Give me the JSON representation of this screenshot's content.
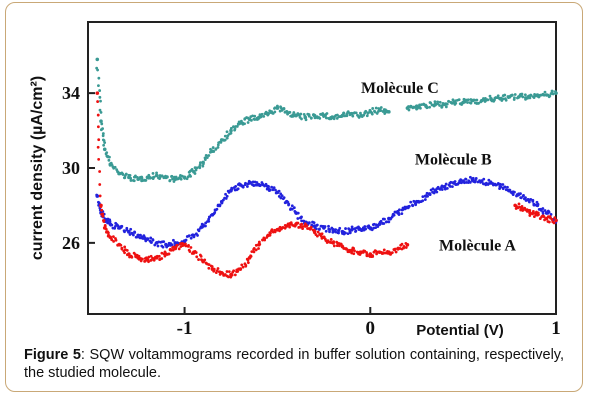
{
  "chart_data": {
    "type": "scatter",
    "ylabel": "current density (µA/cm²)",
    "xlabel": "Potential (V)",
    "xlim": [
      -1.52,
      1.0
    ],
    "ylim": [
      22.2,
      37.8
    ],
    "yticks": [
      26,
      30,
      34
    ],
    "xticks": [
      -1,
      0,
      1
    ],
    "ytick_labels": [
      "26",
      "30",
      "34"
    ],
    "xtick_labels": [
      "-1",
      "0",
      "1"
    ],
    "grid": false,
    "legend": "none",
    "series": [
      {
        "name": "Molècule C",
        "color": "#3a9a94",
        "label_x": -0.05,
        "label_y": 34.0,
        "x": [
          -1.47,
          -1.45,
          -1.43,
          -1.4,
          -1.35,
          -1.3,
          -1.25,
          -1.2,
          -1.15,
          -1.1,
          -1.05,
          -1.0,
          -0.95,
          -0.9,
          -0.85,
          -0.8,
          -0.75,
          -0.7,
          -0.65,
          -0.6,
          -0.55,
          -0.5,
          -0.45,
          -0.4,
          -0.35,
          -0.3,
          -0.25,
          -0.2,
          -0.15,
          -0.1,
          -0.05,
          0.0,
          0.05,
          0.1,
          0.2,
          0.25,
          0.3,
          0.35,
          0.4,
          0.45,
          0.5,
          0.55,
          0.6,
          0.65,
          0.7,
          0.75,
          0.8,
          0.85,
          0.9,
          0.95,
          1.0
        ],
        "y": [
          35.8,
          32.5,
          31.0,
          30.2,
          29.7,
          29.5,
          29.4,
          29.5,
          29.6,
          29.5,
          29.4,
          29.5,
          29.8,
          30.3,
          30.9,
          31.5,
          32.0,
          32.4,
          32.6,
          32.7,
          32.9,
          33.2,
          33.0,
          32.8,
          32.7,
          32.8,
          32.8,
          32.7,
          32.8,
          32.9,
          32.8,
          33.0,
          33.1,
          33.0,
          33.2,
          33.3,
          33.3,
          33.4,
          33.4,
          33.5,
          33.5,
          33.6,
          33.6,
          33.7,
          33.7,
          33.8,
          33.8,
          33.8,
          33.9,
          33.9,
          34.0
        ]
      },
      {
        "name": "Molècule B",
        "color": "#2222dd",
        "label_x": 0.24,
        "label_y": 30.2,
        "x": [
          -1.47,
          -1.45,
          -1.42,
          -1.4,
          -1.35,
          -1.3,
          -1.25,
          -1.2,
          -1.15,
          -1.1,
          -1.05,
          -1.0,
          -0.95,
          -0.9,
          -0.85,
          -0.8,
          -0.75,
          -0.7,
          -0.65,
          -0.6,
          -0.55,
          -0.5,
          -0.45,
          -0.4,
          -0.35,
          -0.3,
          -0.25,
          -0.2,
          -0.15,
          -0.1,
          -0.05,
          0.0,
          0.05,
          0.1,
          0.15,
          0.2,
          0.25,
          0.3,
          0.35,
          0.4,
          0.45,
          0.5,
          0.55,
          0.6,
          0.65,
          0.7,
          0.75,
          0.8,
          0.85,
          0.9,
          0.95,
          1.0
        ],
        "y": [
          28.5,
          27.6,
          27.2,
          27.0,
          26.8,
          26.6,
          26.4,
          26.2,
          26.0,
          25.9,
          26.0,
          26.1,
          26.4,
          26.9,
          27.5,
          28.2,
          28.8,
          29.1,
          29.2,
          29.1,
          29.0,
          28.7,
          28.2,
          27.6,
          27.1,
          26.9,
          26.8,
          26.7,
          26.6,
          26.7,
          26.7,
          26.8,
          27.0,
          27.3,
          27.6,
          27.9,
          28.2,
          28.5,
          28.8,
          29.0,
          29.2,
          29.3,
          29.4,
          29.3,
          29.2,
          29.0,
          28.8,
          28.6,
          28.3,
          28.0,
          27.6,
          27.2
        ]
      },
      {
        "name": "Molècule A",
        "color": "#ee1111",
        "label_x": 0.37,
        "label_y": 25.6,
        "x": [
          -1.47,
          -1.45,
          -1.43,
          -1.4,
          -1.35,
          -1.3,
          -1.25,
          -1.2,
          -1.15,
          -1.1,
          -1.05,
          -1.0,
          -0.95,
          -0.9,
          -0.85,
          -0.8,
          -0.75,
          -0.7,
          -0.65,
          -0.6,
          -0.55,
          -0.5,
          -0.45,
          -0.4,
          -0.35,
          -0.3,
          -0.25,
          -0.2,
          -0.15,
          -0.1,
          -0.05,
          0.0,
          0.05,
          0.1,
          0.15,
          0.2,
          0.78,
          0.82,
          0.86,
          0.9,
          0.95,
          1.0
        ],
        "y": [
          34.0,
          28.0,
          26.8,
          26.3,
          25.9,
          25.4,
          25.2,
          25.1,
          25.2,
          25.4,
          25.7,
          25.9,
          25.5,
          25.0,
          24.6,
          24.4,
          24.3,
          24.6,
          25.2,
          25.9,
          26.4,
          26.7,
          26.9,
          27.0,
          26.9,
          26.6,
          26.3,
          26.0,
          25.8,
          25.6,
          25.5,
          25.4,
          25.5,
          25.5,
          25.7,
          25.9,
          28.0,
          27.8,
          27.6,
          27.5,
          27.3,
          27.2
        ]
      }
    ]
  },
  "caption": {
    "label": "Figure 5",
    "text": ": SQW voltammograms recorded in buffer solution containing, respectively, the studied molecule."
  }
}
